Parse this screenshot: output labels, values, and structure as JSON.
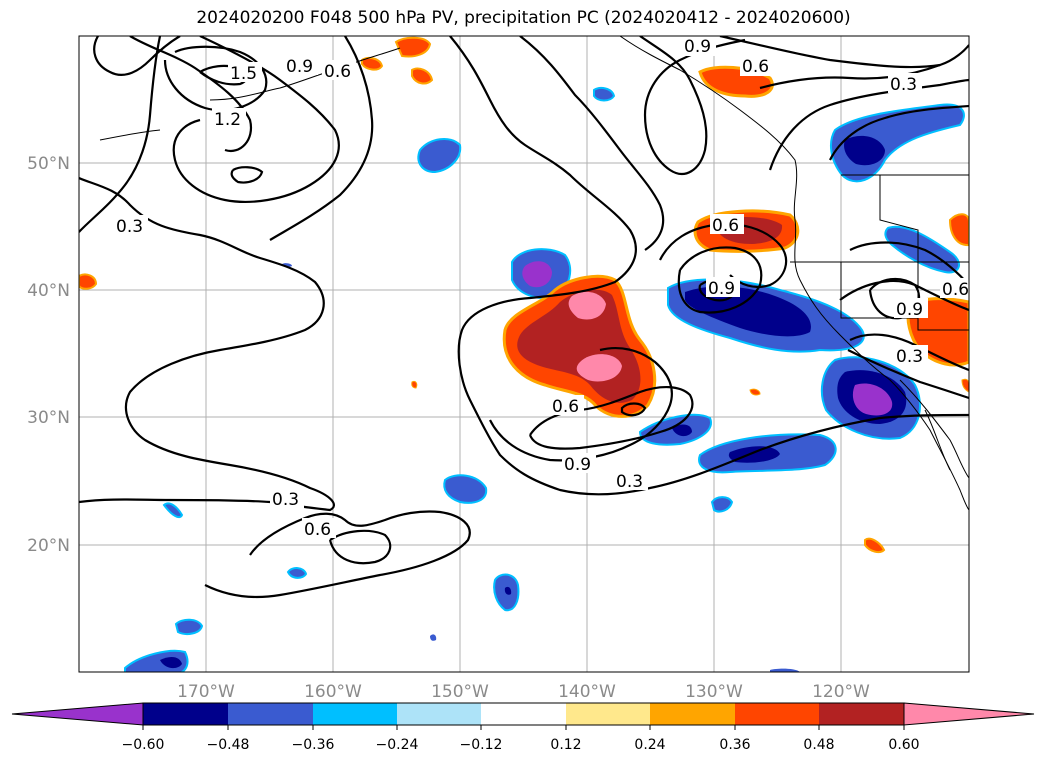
{
  "title": "2024020200 F048 500 hPa PV, precipitation PC (2024020412 - 2024020600)",
  "map": {
    "lon_labels": [
      "170°W",
      "160°W",
      "150°W",
      "140°W",
      "130°W",
      "120°W"
    ],
    "lat_labels": [
      "50°N",
      "40°N",
      "30°N",
      "20°N"
    ],
    "contour_labels": [
      "1.5",
      "1.2",
      "0.9",
      "0.6",
      "0.3",
      "0.6",
      "0.9",
      "0.3",
      "0.6",
      "0.9",
      "0.3",
      "0.6",
      "0.9",
      "0.3",
      "0.6",
      "0.9",
      "0.6",
      "0.3"
    ]
  },
  "colorbar": {
    "ticks": [
      "−0.60",
      "−0.48",
      "−0.36",
      "−0.24",
      "−0.12",
      "0.12",
      "0.24",
      "0.36",
      "0.48",
      "0.60"
    ],
    "colors": [
      "#9932CC",
      "#00008B",
      "#3A5BD0",
      "#00BFFF",
      "#ADE3F8",
      "#FFFFFF",
      "#FFE88C",
      "#FFA500",
      "#FF4500",
      "#B22222",
      "#FF88AA"
    ]
  }
}
